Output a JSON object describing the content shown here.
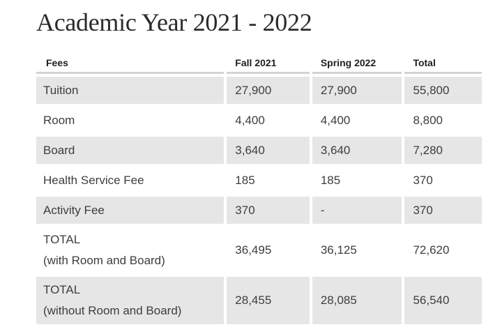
{
  "title": "Academic Year 2021 - 2022",
  "table": {
    "headers": {
      "fee": "Fees",
      "fall": "Fall 2021",
      "spring": "Spring 2022",
      "total": "Total"
    },
    "rows": [
      {
        "fee": "Tuition",
        "fall": "27,900",
        "spring": "27,900",
        "total": "55,800"
      },
      {
        "fee": "Room",
        "fall": "4,400",
        "spring": "4,400",
        "total": "8,800"
      },
      {
        "fee": "Board",
        "fall": "3,640",
        "spring": "3,640",
        "total": "7,280"
      },
      {
        "fee": "Health Service Fee",
        "fall": "185",
        "spring": "185",
        "total": "370"
      },
      {
        "fee": "Activity Fee",
        "fall": "370",
        "spring": "-",
        "total": "370"
      },
      {
        "fee_line1": "TOTAL",
        "fee_line2": "(with Room and Board)",
        "fall": "36,495",
        "spring": "36,125",
        "total": "72,620"
      },
      {
        "fee_line1": "TOTAL",
        "fee_line2": "(without Room and Board)",
        "fall": "28,455",
        "spring": "28,085",
        "total": "56,540"
      }
    ]
  }
}
